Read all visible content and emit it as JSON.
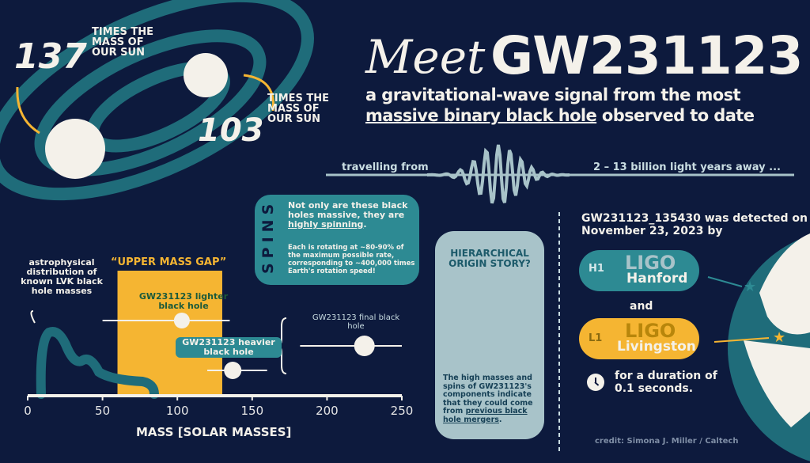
{
  "title": {
    "meet": "Meet",
    "name": "GW231123"
  },
  "subtitle": {
    "line1": "a gravitational-wave signal from the most",
    "line2_underlined": "massive binary black hole",
    "line2_rest": "observed to date"
  },
  "travel": {
    "from": "travelling from",
    "distance": "2 – 13 billion light years away ..."
  },
  "masses": {
    "big": {
      "number": "137",
      "text": "TIMES THE MASS OF OUR SUN"
    },
    "small": {
      "number": "103",
      "text": "TIMES THE MASS OF OUR SUN"
    }
  },
  "spins": {
    "title": "SPINS",
    "main_pre": "Not only are these black holes massive, they are",
    "main_underlined": "highly spinning",
    "main_post": ".",
    "detail": "Each is rotating at ~80-90% of the maximum possible rate, corresponding to ~400,000 times Earth's rotation speed!"
  },
  "hierarchical": {
    "title": "HIERARCHICAL ORIGIN STORY?",
    "text_pre": "The high masses and spins of GW231123's components indicate that they could come from",
    "text_underlined": "previous black hole mergers",
    "text_post": "."
  },
  "detection": {
    "text": "GW231123_135430 was detected on November 23, 2023 by",
    "hanford": {
      "code": "H1",
      "ligo": "LIGO",
      "site": "Hanford"
    },
    "and": "and",
    "livingston": {
      "code": "L1",
      "ligo": "LIGO",
      "site": "Livingston"
    },
    "duration": "for a duration of 0.1 seconds."
  },
  "credit": "credit: Simona J. Miller / Caltech",
  "colors": {
    "background": "#0d1a3d",
    "teal": "#2d8a93",
    "yellow": "#f5b532",
    "card": "#a8c3c9",
    "cream": "#f4f1ea"
  },
  "chart_data": {
    "type": "scatter",
    "xlabel": "MASS [SOLAR MASSES]",
    "xlim": [
      0,
      250
    ],
    "xticks": [
      "0",
      "50",
      "100",
      "150",
      "200",
      "250"
    ],
    "band": {
      "label": "“UPPER MASS GAP”",
      "range": [
        60,
        130
      ]
    },
    "distribution_label": "astrophysical distribution of known LVK black hole masses",
    "points": [
      {
        "label": "GW231123 lighter black hole",
        "value": 103,
        "range": [
          50,
          135
        ]
      },
      {
        "label": "GW231123 heavier black hole",
        "value": 137,
        "range": [
          120,
          160
        ]
      },
      {
        "label": "GW231123 final black hole",
        "value": 225,
        "range": [
          182,
          250
        ]
      }
    ]
  }
}
